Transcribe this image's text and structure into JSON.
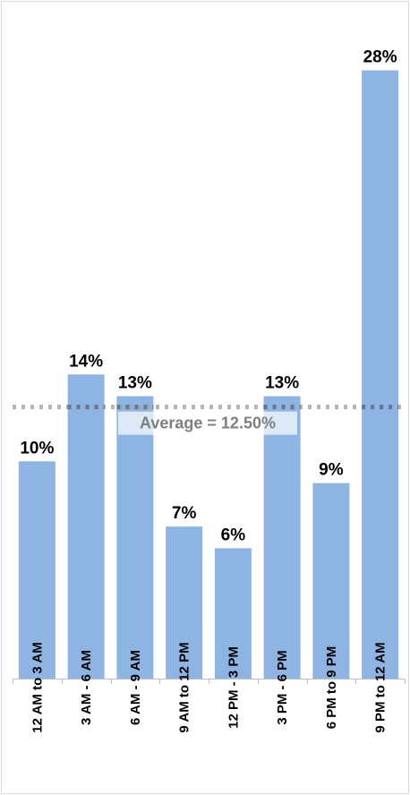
{
  "chart_data": {
    "type": "bar",
    "categories": [
      "12 AM to 3 AM",
      "3 AM - 6 AM",
      "6 AM - 9 AM",
      "9 AM to 12 PM",
      "12 PM - 3 PM",
      "3 PM - 6 PM",
      "6 PM to 9 PM",
      "9 PM to 12 AM"
    ],
    "values": [
      10,
      14,
      13,
      7,
      6,
      13,
      9,
      28
    ],
    "data_labels": [
      "10%",
      "14%",
      "13%",
      "7%",
      "6%",
      "13%",
      "9%",
      "28%"
    ],
    "ylim": [
      0,
      30
    ],
    "unit": "%",
    "average": {
      "value": 12.5,
      "label": "Average = 12.50%",
      "style": "dotted"
    },
    "grid": false,
    "legend": "none",
    "title": "",
    "xlabel": "",
    "ylabel": ""
  },
  "colors": {
    "bar": "#8eb4e3",
    "average_line": "#a6a6a6",
    "average_line_over_bar": "#5a6e8c",
    "average_text": "#7f7f7f"
  }
}
